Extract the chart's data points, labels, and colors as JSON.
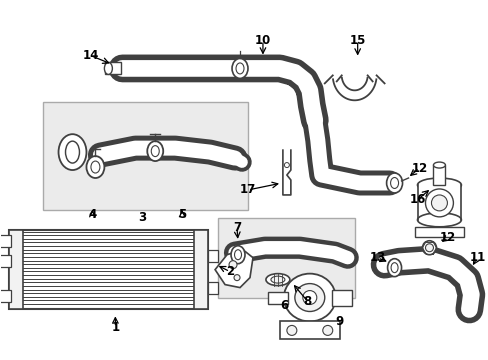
{
  "bg_color": "#ffffff",
  "fig_width": 4.89,
  "fig_height": 3.6,
  "dpi": 100,
  "gray": "#404040",
  "light_fill": "#f2f2f2",
  "box_fill": "#ebebeb"
}
